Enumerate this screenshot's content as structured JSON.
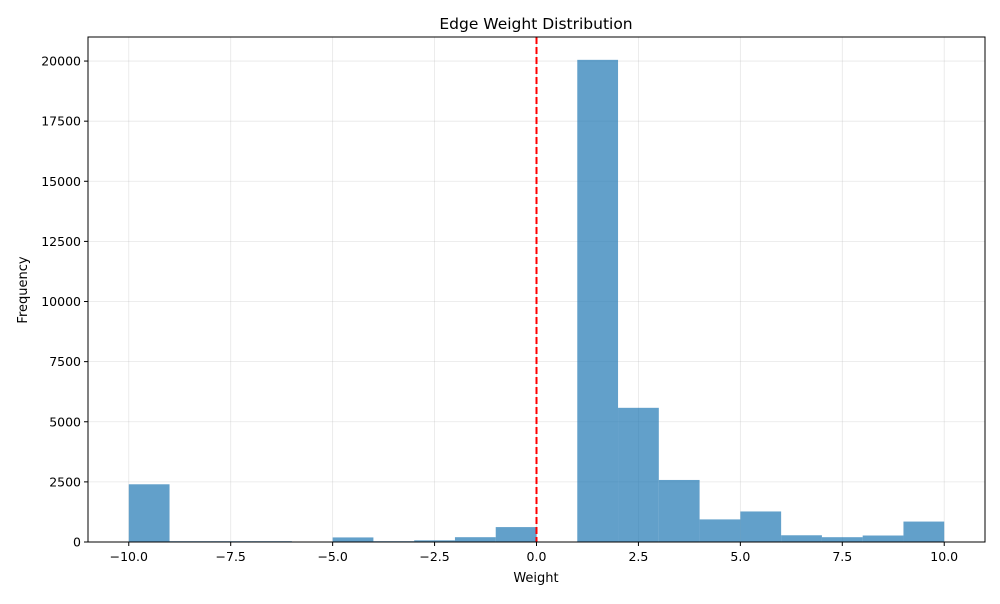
{
  "chart_data": {
    "type": "bar",
    "title": "Edge Weight Distribution",
    "xlabel": "Weight",
    "ylabel": "Frequency",
    "xlim": [
      -11,
      11
    ],
    "ylim": [
      0,
      21000
    ],
    "grid": true,
    "bins": [
      {
        "x0": -10,
        "x1": -9,
        "count": 2400
      },
      {
        "x0": -9,
        "x1": -8,
        "count": 20
      },
      {
        "x0": -8,
        "x1": -7,
        "count": 15
      },
      {
        "x0": -7,
        "x1": -6,
        "count": 15
      },
      {
        "x0": -6,
        "x1": -5,
        "count": 0
      },
      {
        "x0": -5,
        "x1": -4,
        "count": 190
      },
      {
        "x0": -4,
        "x1": -3,
        "count": 15
      },
      {
        "x0": -3,
        "x1": -2,
        "count": 70
      },
      {
        "x0": -2,
        "x1": -1,
        "count": 200
      },
      {
        "x0": -1,
        "x1": 0,
        "count": 620
      },
      {
        "x0": 0,
        "x1": 1,
        "count": 0
      },
      {
        "x0": 1,
        "x1": 2,
        "count": 20050
      },
      {
        "x0": 2,
        "x1": 3,
        "count": 5580
      },
      {
        "x0": 3,
        "x1": 4,
        "count": 2580
      },
      {
        "x0": 4,
        "x1": 5,
        "count": 940
      },
      {
        "x0": 5,
        "x1": 6,
        "count": 1270
      },
      {
        "x0": 6,
        "x1": 7,
        "count": 280
      },
      {
        "x0": 7,
        "x1": 8,
        "count": 200
      },
      {
        "x0": 8,
        "x1": 9,
        "count": 270
      },
      {
        "x0": 9,
        "x1": 10,
        "count": 850
      }
    ],
    "bar_color": "#1f77b4",
    "bar_opacity": 0.7,
    "reference_line": {
      "x": 0,
      "color": "#ff0000",
      "style": "dashed"
    },
    "xticks": [
      {
        "value": -10,
        "label": "−10.0"
      },
      {
        "value": -7.5,
        "label": "−7.5"
      },
      {
        "value": -5,
        "label": "−5.0"
      },
      {
        "value": -2.5,
        "label": "−2.5"
      },
      {
        "value": 0,
        "label": "0.0"
      },
      {
        "value": 2.5,
        "label": "2.5"
      },
      {
        "value": 5,
        "label": "5.0"
      },
      {
        "value": 7.5,
        "label": "7.5"
      },
      {
        "value": 10,
        "label": "10.0"
      }
    ],
    "yticks": [
      {
        "value": 0,
        "label": "0"
      },
      {
        "value": 2500,
        "label": "2500"
      },
      {
        "value": 5000,
        "label": "5000"
      },
      {
        "value": 7500,
        "label": "7500"
      },
      {
        "value": 10000,
        "label": "10000"
      },
      {
        "value": 12500,
        "label": "12500"
      },
      {
        "value": 15000,
        "label": "15000"
      },
      {
        "value": 17500,
        "label": "17500"
      },
      {
        "value": 20000,
        "label": "20000"
      }
    ]
  }
}
